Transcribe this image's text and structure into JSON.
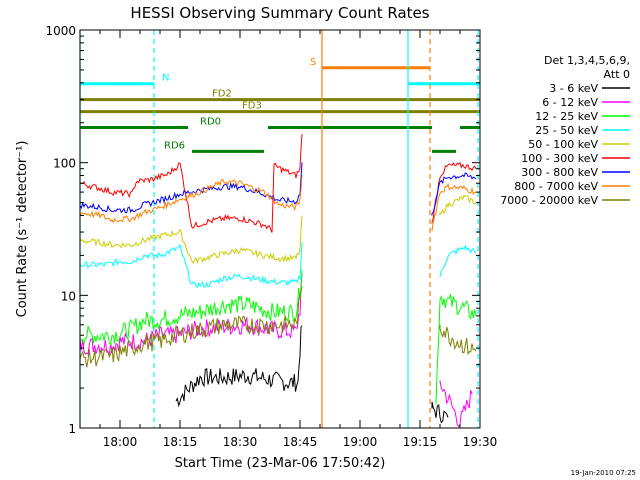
{
  "chart_data": {
    "type": "line",
    "title": "HESSI Observing Summary Count Rates",
    "xlabel": "Start Time (23-Mar-06 17:50:42)",
    "ylabel": "Count Rate (s⁻¹ detector⁻¹)",
    "footer_date": "19-Jan-2010 07:25",
    "y_scale": "log",
    "ylim": [
      1,
      1000
    ],
    "xlim_minutes_after_1750": [
      0,
      100
    ],
    "x_ticks": [
      {
        "label": "18:00",
        "m": 10
      },
      {
        "label": "18:15",
        "m": 25
      },
      {
        "label": "18:30",
        "m": 40
      },
      {
        "label": "18:45",
        "m": 55
      },
      {
        "label": "19:00",
        "m": 70
      },
      {
        "label": "19:15",
        "m": 85
      },
      {
        "label": "19:30",
        "m": 100
      }
    ],
    "y_ticks": [
      {
        "label": "1",
        "v": 1
      },
      {
        "label": "10",
        "v": 10
      },
      {
        "label": "100",
        "v": 100
      },
      {
        "label": "1000",
        "v": 1000
      }
    ],
    "legend": {
      "header_line1": "Det 1,3,4,5,6,9,",
      "header_line2": "Att 0",
      "placement": "right"
    },
    "series": [
      {
        "name": "3 - 6 keV",
        "color": "#000000",
        "points": [
          [
            24,
            1.6
          ],
          [
            30,
            2.4
          ],
          [
            36,
            2.4
          ],
          [
            42,
            2.5
          ],
          [
            48,
            2.3
          ],
          [
            52,
            2.2
          ],
          [
            54.5,
            2.2
          ],
          [
            55,
            4
          ],
          [
            55.5,
            6
          ],
          [
            88,
            1.4
          ],
          [
            92,
            1.2
          ]
        ]
      },
      {
        "name": "6 - 12 keV",
        "color": "#ff00ff",
        "points": [
          [
            0,
            4.2
          ],
          [
            8,
            4.2
          ],
          [
            10,
            4.5
          ],
          [
            16,
            4.5
          ],
          [
            20,
            5
          ],
          [
            24,
            5
          ],
          [
            30,
            5.6
          ],
          [
            36,
            5.8
          ],
          [
            42,
            6
          ],
          [
            48,
            5.5
          ],
          [
            54,
            5.3
          ],
          [
            55,
            8
          ],
          [
            55.5,
            14
          ],
          [
            90,
            2.2
          ],
          [
            95,
            1.1
          ],
          [
            98,
            1.8
          ]
        ]
      },
      {
        "name": "12 - 25 keV",
        "color": "#00ff00",
        "points": [
          [
            0,
            5.0
          ],
          [
            8,
            5.0
          ],
          [
            13,
            5.6
          ],
          [
            16,
            6.5
          ],
          [
            20,
            6.5
          ],
          [
            24,
            7
          ],
          [
            30,
            7.5
          ],
          [
            36,
            8.5
          ],
          [
            42,
            8.5
          ],
          [
            48,
            7.5
          ],
          [
            54,
            7.5
          ],
          [
            55,
            11
          ],
          [
            55.5,
            16
          ],
          [
            89,
            1.5
          ],
          [
            90,
            10
          ],
          [
            92,
            9
          ],
          [
            96,
            8
          ],
          [
            99,
            7
          ]
        ]
      },
      {
        "name": "25 - 50 keV",
        "color": "#00ffff",
        "points": [
          [
            0,
            17
          ],
          [
            6,
            17
          ],
          [
            10,
            18
          ],
          [
            13,
            18
          ],
          [
            16,
            20
          ],
          [
            20,
            20
          ],
          [
            25,
            23
          ],
          [
            28,
            12
          ],
          [
            32,
            12
          ],
          [
            36,
            13.5
          ],
          [
            40,
            14
          ],
          [
            46,
            13
          ],
          [
            50,
            12.5
          ],
          [
            54,
            12.5
          ],
          [
            55,
            14
          ],
          [
            55.5,
            25
          ],
          [
            90,
            14
          ],
          [
            92,
            20
          ],
          [
            96,
            23
          ],
          [
            99,
            21
          ]
        ]
      },
      {
        "name": "50 - 100 keV",
        "color": "#cccc00",
        "points": [
          [
            0,
            26
          ],
          [
            5,
            25
          ],
          [
            8,
            24
          ],
          [
            13,
            24
          ],
          [
            16,
            26
          ],
          [
            20,
            28
          ],
          [
            25,
            30
          ],
          [
            28,
            18
          ],
          [
            34,
            20
          ],
          [
            40,
            22
          ],
          [
            46,
            20
          ],
          [
            50,
            19
          ],
          [
            54,
            19
          ],
          [
            55,
            22
          ],
          [
            55.5,
            40
          ],
          [
            90,
            40
          ],
          [
            92,
            48
          ],
          [
            96,
            55
          ],
          [
            99,
            50
          ]
        ]
      },
      {
        "name": "100 - 300 keV",
        "color": "#ff0000",
        "points": [
          [
            0,
            70
          ],
          [
            5,
            64
          ],
          [
            8,
            60
          ],
          [
            13,
            58
          ],
          [
            14,
            72
          ],
          [
            18,
            75
          ],
          [
            22,
            82
          ],
          [
            25,
            98
          ],
          [
            28,
            33
          ],
          [
            32,
            36
          ],
          [
            36,
            38
          ],
          [
            40,
            38
          ],
          [
            46,
            34
          ],
          [
            48,
            31
          ],
          [
            48.5,
            95
          ],
          [
            52,
            85
          ],
          [
            54,
            80
          ],
          [
            55,
            90
          ],
          [
            55.5,
            170
          ],
          [
            88,
            35
          ],
          [
            90,
            80
          ],
          [
            92,
            95
          ],
          [
            96,
            95
          ],
          [
            99,
            90
          ]
        ]
      },
      {
        "name": "300 - 800 keV",
        "color": "#0000ff",
        "points": [
          [
            0,
            48
          ],
          [
            5,
            46
          ],
          [
            8,
            44
          ],
          [
            13,
            44
          ],
          [
            16,
            48
          ],
          [
            20,
            52
          ],
          [
            25,
            58
          ],
          [
            30,
            62
          ],
          [
            36,
            66
          ],
          [
            40,
            66
          ],
          [
            46,
            58
          ],
          [
            50,
            52
          ],
          [
            54,
            51
          ],
          [
            55,
            58
          ],
          [
            55.5,
            100
          ],
          [
            88,
            40
          ],
          [
            90,
            70
          ],
          [
            92,
            78
          ],
          [
            96,
            80
          ],
          [
            99,
            76
          ]
        ]
      },
      {
        "name": "800 - 7000 keV",
        "color": "#ff7f00",
        "points": [
          [
            0,
            42
          ],
          [
            5,
            40
          ],
          [
            8,
            37
          ],
          [
            13,
            38
          ],
          [
            16,
            42
          ],
          [
            20,
            46
          ],
          [
            25,
            53
          ],
          [
            30,
            60
          ],
          [
            36,
            72
          ],
          [
            40,
            70
          ],
          [
            46,
            60
          ],
          [
            50,
            48
          ],
          [
            54,
            46
          ],
          [
            55,
            52
          ],
          [
            55.5,
            80
          ],
          [
            88,
            32
          ],
          [
            90,
            60
          ],
          [
            92,
            66
          ],
          [
            96,
            64
          ],
          [
            99,
            60
          ]
        ]
      },
      {
        "name": "7000 - 20000 keV",
        "color": "#7f7f00",
        "points": [
          [
            0,
            3.3
          ],
          [
            8,
            3.5
          ],
          [
            13,
            4
          ],
          [
            16,
            4.4
          ],
          [
            20,
            4.5
          ],
          [
            24,
            5
          ],
          [
            30,
            5.5
          ],
          [
            36,
            6
          ],
          [
            42,
            6
          ],
          [
            48,
            6
          ],
          [
            54,
            6
          ],
          [
            55,
            9
          ],
          [
            55.5,
            12
          ],
          [
            90,
            6
          ],
          [
            92,
            5
          ],
          [
            96,
            4.2
          ],
          [
            99,
            3.8
          ]
        ]
      }
    ],
    "state_bars": [
      {
        "label": "N",
        "color": "#00ffff",
        "segments": [
          [
            0,
            18.5
          ],
          [
            82,
            100
          ]
        ],
        "y_frac": 0.135,
        "label_m": 20.5
      },
      {
        "label": "S",
        "color": "#ff7f00",
        "segments": [
          [
            60.5,
            87.5
          ]
        ],
        "y_frac": 0.095,
        "label_m": 57.5
      },
      {
        "label": "FD2",
        "color": "#7f7f00",
        "segments": [
          [
            0,
            100
          ]
        ],
        "y_frac": 0.175,
        "label_m": 33
      },
      {
        "label": "FD3",
        "color": "#7f7f00",
        "segments": [
          [
            0,
            100
          ]
        ],
        "y_frac": 0.205,
        "label_m": 40.5
      },
      {
        "label": "RD0",
        "color": "#007f00",
        "segments": [
          [
            0,
            27
          ],
          [
            47,
            88
          ],
          [
            95,
            100
          ]
        ],
        "y_frac": 0.245,
        "label_m": 30
      },
      {
        "label": "RD6",
        "color": "#007f00",
        "segments": [
          [
            28,
            46
          ],
          [
            88,
            94
          ]
        ],
        "y_frac": 0.305,
        "label_m": 21
      }
    ],
    "vlines": [
      {
        "m": 0,
        "color": "#00ffff",
        "dash": false
      },
      {
        "m": 18.5,
        "color": "#00ffff",
        "dash": true
      },
      {
        "m": 60.5,
        "color": "#ff7f00",
        "dash": false
      },
      {
        "m": 82,
        "color": "#00ffff",
        "dash": false
      },
      {
        "m": 87.5,
        "color": "#ff7f00",
        "dash": true
      },
      {
        "m": 99.5,
        "color": "#00ffff",
        "dash": true
      }
    ]
  }
}
